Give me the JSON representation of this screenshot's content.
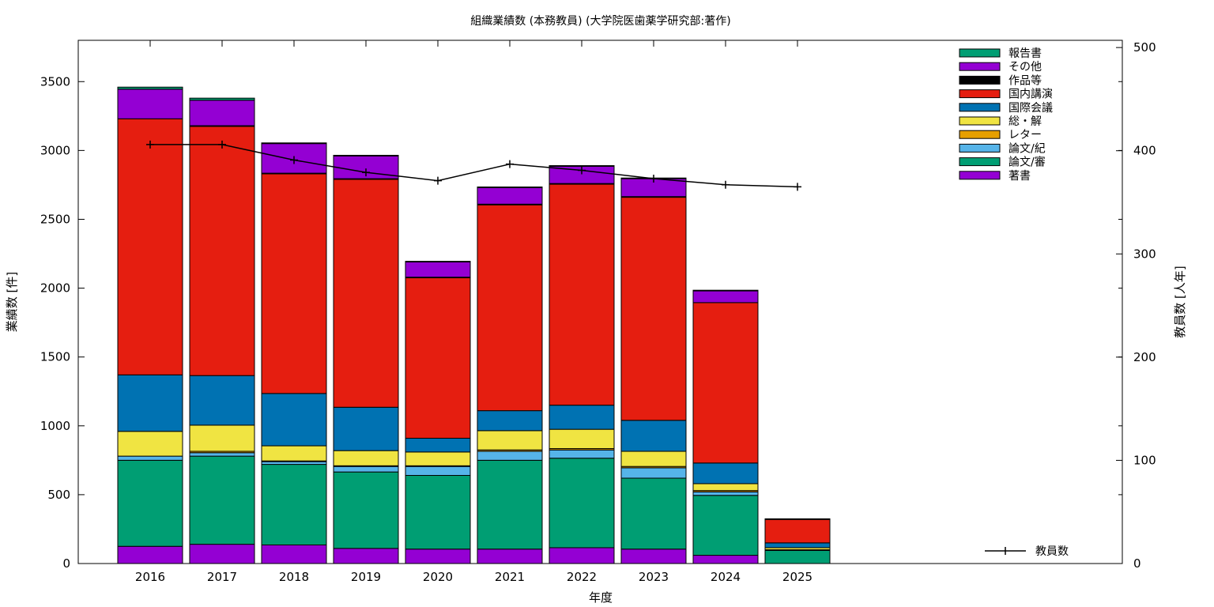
{
  "chart_data": {
    "type": "bar",
    "stacked": true,
    "title": "組織業績数 (本務教員) (大学院医歯薬学研究部:著作)",
    "xlabel": "年度",
    "ylabel": "業績数 [件]",
    "y2label": "教員数 [人年]",
    "ylim": [
      0,
      3800
    ],
    "y2lim": [
      0,
      507
    ],
    "yticks": [
      0,
      500,
      1000,
      1500,
      2000,
      2500,
      3000,
      3500
    ],
    "y2ticks": [
      0,
      100,
      200,
      300,
      400,
      500
    ],
    "legend_position": "top-right",
    "categories": [
      "2016",
      "2017",
      "2018",
      "2019",
      "2020",
      "2021",
      "2022",
      "2023",
      "2024",
      "2025"
    ],
    "series": [
      {
        "name": "著書",
        "color": "#9400d3",
        "values": [
          125,
          140,
          135,
          110,
          105,
          105,
          115,
          105,
          60,
          0
        ]
      },
      {
        "name": "論文/審",
        "color": "#009e73",
        "values": [
          625,
          640,
          585,
          555,
          535,
          645,
          650,
          515,
          435,
          95
        ]
      },
      {
        "name": "論文/紀",
        "color": "#56b4e9",
        "values": [
          30,
          25,
          20,
          40,
          65,
          65,
          60,
          75,
          25,
          5
        ]
      },
      {
        "name": "レター",
        "color": "#e69f00",
        "values": [
          0,
          10,
          5,
          5,
          5,
          10,
          10,
          10,
          10,
          0
        ]
      },
      {
        "name": "総・解",
        "color": "#f0e442",
        "values": [
          180,
          190,
          110,
          110,
          100,
          140,
          140,
          110,
          50,
          15
        ]
      },
      {
        "name": "国際会議",
        "color": "#0072b2",
        "values": [
          410,
          360,
          380,
          315,
          100,
          145,
          175,
          225,
          150,
          35
        ]
      },
      {
        "name": "国内講演",
        "color": "#e51e10",
        "values": [
          1860,
          1810,
          1595,
          1655,
          1165,
          1495,
          1605,
          1620,
          1165,
          170
        ]
      },
      {
        "name": "作品等",
        "color": "#000000",
        "values": [
          0,
          5,
          5,
          5,
          5,
          5,
          5,
          5,
          0,
          0
        ]
      },
      {
        "name": "その他",
        "color": "#9400d3",
        "values": [
          215,
          185,
          215,
          165,
          110,
          120,
          125,
          130,
          85,
          5
        ]
      },
      {
        "name": "報告書",
        "color": "#009e73",
        "values": [
          15,
          15,
          5,
          5,
          5,
          5,
          5,
          5,
          5,
          0
        ]
      }
    ],
    "line_series": {
      "name": "教員数",
      "axis": "right",
      "color": "#000000",
      "values": [
        406,
        406,
        391,
        379,
        371,
        387,
        381,
        373,
        367,
        365
      ]
    },
    "legend_order": [
      "報告書",
      "その他",
      "作品等",
      "国内講演",
      "国際会議",
      "総・解",
      "レター",
      "論文/紀",
      "論文/審",
      "著書"
    ]
  }
}
